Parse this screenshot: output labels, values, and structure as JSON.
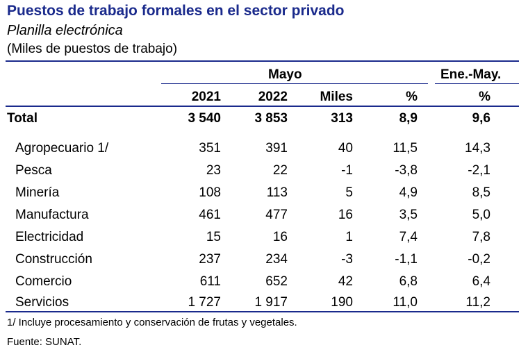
{
  "title": "Puestos de trabajo formales en el sector privado",
  "subtitle": "Planilla electrónica",
  "units": "(Miles de puestos de trabajo)",
  "header": {
    "group_mayo": "Mayo",
    "group_ene_may": "Ene.-May.",
    "columns": [
      "2021",
      "2022",
      "Miles",
      "%",
      "%"
    ]
  },
  "total": {
    "label": "Total",
    "values": [
      "3 540",
      "3 853",
      "313",
      "8,9",
      "9,6"
    ]
  },
  "rows": [
    {
      "label": "Agropecuario 1/",
      "values": [
        "351",
        "391",
        "40",
        "11,5",
        "14,3"
      ]
    },
    {
      "label": "Pesca",
      "values": [
        "23",
        "22",
        "-1",
        "-3,8",
        "-2,1"
      ]
    },
    {
      "label": "Minería",
      "values": [
        "108",
        "113",
        "5",
        "4,9",
        "8,5"
      ]
    },
    {
      "label": "Manufactura",
      "values": [
        "461",
        "477",
        "16",
        "3,5",
        "5,0"
      ]
    },
    {
      "label": "Electricidad",
      "values": [
        "15",
        "16",
        "1",
        "7,4",
        "7,8"
      ]
    },
    {
      "label": "Construcción",
      "values": [
        "237",
        "234",
        "-3",
        "-1,1",
        "-0,2"
      ]
    },
    {
      "label": "Comercio",
      "values": [
        "611",
        "652",
        "42",
        "6,8",
        "6,4"
      ]
    },
    {
      "label": "Servicios",
      "values": [
        "1 727",
        "1 917",
        "190",
        "11,0",
        "11,2"
      ]
    }
  ],
  "footnote": "1/ Incluye procesamiento y conservación de frutas y vegetales.",
  "source": "Fuente: SUNAT.",
  "colors": {
    "accent": "#1a2a8c"
  }
}
